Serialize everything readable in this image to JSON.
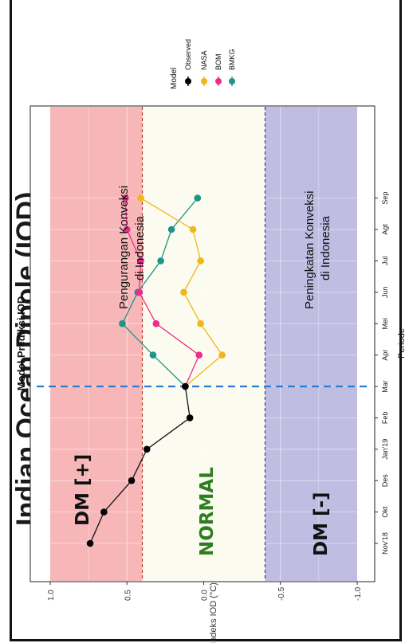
{
  "page_header": "Indian Ocean Dipole (IOD)",
  "chart_data": {
    "type": "line",
    "title": "Model Prediksi IOD",
    "xlabel": "Periode",
    "ylabel": "Indeks IOD (°C)",
    "categories": [
      "Nov'18",
      "Okt",
      "Des",
      "Jan'19",
      "Feb",
      "Mar",
      "Apr",
      "Mei",
      "Jun",
      "Jul",
      "Agt",
      "Sep"
    ],
    "yticks": [
      1.0,
      0.5,
      0.0,
      -0.5,
      -1.0
    ],
    "ytick_labels": [
      "1.0",
      "0.5",
      "0.0",
      "-0.5",
      "-1.0"
    ],
    "ylim": [
      -1.05,
      1.05
    ],
    "legend": {
      "title": "Model",
      "placement": "right"
    },
    "series": [
      {
        "name": "Observed",
        "color": "#000000",
        "x": [
          0,
          1,
          2,
          3,
          4,
          5
        ],
        "values": [
          0.74,
          0.65,
          0.47,
          0.37,
          0.09,
          0.12
        ]
      },
      {
        "name": "NASA",
        "color": "#f2b51a",
        "x": [
          5,
          6,
          7,
          8,
          9,
          10,
          11
        ],
        "values": [
          0.12,
          -0.12,
          0.02,
          0.13,
          0.02,
          0.07,
          0.41
        ]
      },
      {
        "name": "BOM",
        "color": "#ee2a8c",
        "x": [
          5,
          6,
          7,
          8,
          9,
          10,
          11
        ],
        "values": [
          0.12,
          0.03,
          0.31,
          0.42,
          0.41,
          0.5,
          0.51
        ]
      },
      {
        "name": "BMKG",
        "color": "#1f9488",
        "x": [
          5,
          6,
          7,
          8,
          9,
          10,
          11
        ],
        "values": [
          0.12,
          0.33,
          0.53,
          0.43,
          0.28,
          0.21,
          0.04
        ]
      }
    ],
    "thresholds": {
      "positive": 0.4,
      "negative": -0.4
    },
    "forecast_start": "Mar",
    "zones": [
      {
        "label": "DM [+]",
        "color": "#f7b7b9"
      },
      {
        "label": "NORMAL",
        "color": "#fbfbef"
      },
      {
        "label": "DM [-]",
        "color": "#bfbde2"
      }
    ],
    "annotations": [
      "Pengurangan Konveksi",
      "di Indonesia",
      "Peningkatan Konveksi",
      "di Indonesia"
    ]
  }
}
